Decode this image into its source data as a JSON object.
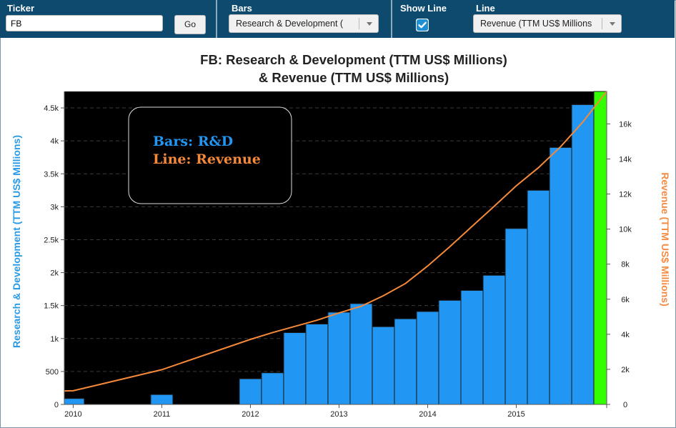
{
  "toolbar": {
    "ticker_label": "Ticker",
    "ticker_value": "FB",
    "go_label": "Go",
    "bars_label": "Bars",
    "bars_selected": "Research & Development (",
    "show_line_label": "Show Line",
    "show_line_checked": true,
    "line_label": "Line",
    "line_selected": "Revenue (TTM US$ Millions"
  },
  "colors": {
    "toolbar_bg": "#0d4a6e",
    "bars": "#2196f3",
    "latest_bar": "#33ff00",
    "line": "#f5893a",
    "plot_bg": "#000000",
    "left_axis_label": "#2a9ae5",
    "right_axis_label": "#f58a42",
    "checkbox_accent": "#1f8fd6"
  },
  "chart_data": {
    "type": "bar",
    "title": "FB: Research & Development (TTM US$ Millions)",
    "subtitle": "& Revenue (TTM US$ Millions)",
    "ylabel": "Research & Development (TTM US$ Millions)",
    "y2label": "Revenue (TTM US$ Millions)",
    "ylim": [
      0,
      4750
    ],
    "y2lim": [
      0,
      17850
    ],
    "xlim": [
      2009.9,
      2016.02
    ],
    "x_ticks": [
      "2010",
      "2011",
      "2012",
      "2013",
      "2014",
      "2015"
    ],
    "y_ticks": [
      "0",
      "500",
      "1k",
      "1.5k",
      "2k",
      "2.5k",
      "3k",
      "3.5k",
      "4k",
      "4.5k"
    ],
    "y2_ticks": [
      "0",
      "2k",
      "4k",
      "6k",
      "8k",
      "10k",
      "12k",
      "14k",
      "16k"
    ],
    "legend_box": {
      "line1": "Bars: R&D",
      "line2": "Line: Revenue"
    },
    "bars": [
      {
        "x": 2010.0,
        "value": 90
      },
      {
        "x": 2011.0,
        "value": 150
      },
      {
        "x": 2012.0,
        "value": 390
      },
      {
        "x": 2012.25,
        "value": 480
      },
      {
        "x": 2012.5,
        "value": 1090
      },
      {
        "x": 2012.75,
        "value": 1220
      },
      {
        "x": 2013.0,
        "value": 1400
      },
      {
        "x": 2013.25,
        "value": 1530
      },
      {
        "x": 2013.5,
        "value": 1180
      },
      {
        "x": 2013.75,
        "value": 1300
      },
      {
        "x": 2014.0,
        "value": 1410
      },
      {
        "x": 2014.25,
        "value": 1580
      },
      {
        "x": 2014.5,
        "value": 1730
      },
      {
        "x": 2014.75,
        "value": 1960
      },
      {
        "x": 2015.0,
        "value": 2670
      },
      {
        "x": 2015.25,
        "value": 3250
      },
      {
        "x": 2015.5,
        "value": 3900
      },
      {
        "x": 2015.75,
        "value": 4550
      },
      {
        "x": 2016.0,
        "value": 4800,
        "highlight": true
      }
    ],
    "line": {
      "name": "Revenue",
      "points": [
        [
          2009.9,
          770
        ],
        [
          2010.0,
          780
        ],
        [
          2011.0,
          1980
        ],
        [
          2012.0,
          3710
        ],
        [
          2012.25,
          4100
        ],
        [
          2012.5,
          4450
        ],
        [
          2012.75,
          4800
        ],
        [
          2013.0,
          5220
        ],
        [
          2013.25,
          5600
        ],
        [
          2013.5,
          6200
        ],
        [
          2013.75,
          6900
        ],
        [
          2014.0,
          7900
        ],
        [
          2014.25,
          9000
        ],
        [
          2014.5,
          10150
        ],
        [
          2014.75,
          11300
        ],
        [
          2015.0,
          12470
        ],
        [
          2015.25,
          13500
        ],
        [
          2015.5,
          14700
        ],
        [
          2015.75,
          16100
        ],
        [
          2016.02,
          17850
        ]
      ]
    }
  }
}
